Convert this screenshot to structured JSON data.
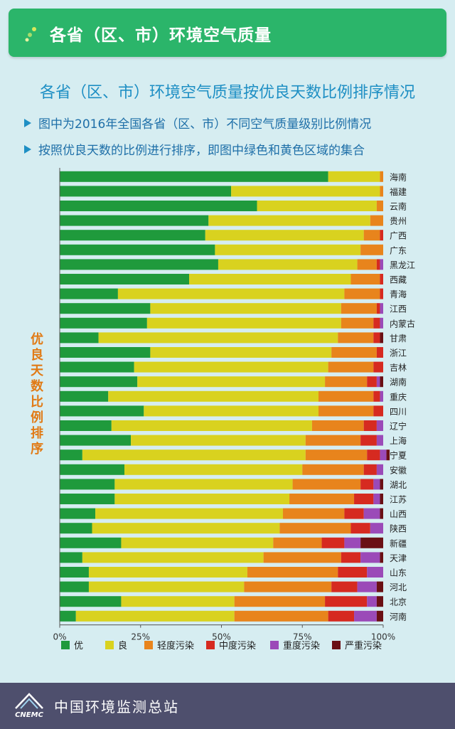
{
  "header": {
    "title": "各省（区、市）环境空气质量"
  },
  "heading": "各省（区、市）环境空气质量按优良天数比例排序情况",
  "notes": [
    "图中为2016年全国各省（区、市）不同空气质量级别比例情况",
    "按照优良天数的比例进行排序，即图中绿色和黄色区域的集合"
  ],
  "footer": {
    "organization": "中国环境监测总站",
    "logo_text": "CNEMC"
  },
  "chart_data": {
    "type": "bar",
    "orientation": "horizontal",
    "stacked": true,
    "ylabel": "优良天数比例排序",
    "xlim": [
      0,
      100
    ],
    "x_ticks": [
      "0%",
      "25%",
      "50%",
      "75%",
      "100%"
    ],
    "grid": false,
    "legend_position": "bottom",
    "categories": [
      "海南",
      "福建",
      "云南",
      "贵州",
      "广西",
      "广东",
      "黑龙江",
      "西藏",
      "青海",
      "江西",
      "内蒙古",
      "甘肃",
      "浙江",
      "吉林",
      "湖南",
      "重庆",
      "四川",
      "辽宁",
      "上海",
      "宁夏",
      "安徽",
      "湖北",
      "江苏",
      "山西",
      "陕西",
      "新疆",
      "天津",
      "山东",
      "河北",
      "北京",
      "河南"
    ],
    "series": [
      {
        "name": "优",
        "color": "#1f9a3c",
        "values": [
          83,
          53,
          61,
          46,
          45,
          48,
          49,
          40,
          18,
          28,
          27,
          12,
          28,
          23,
          24,
          15,
          26,
          16,
          22,
          7,
          20,
          17,
          17,
          11,
          10,
          19,
          7,
          9,
          9,
          19,
          5
        ]
      },
      {
        "name": "良",
        "color": "#d9d21f",
        "values": [
          16,
          46,
          37,
          50,
          49,
          45,
          43,
          50,
          70,
          59,
          60,
          74,
          56,
          60,
          58,
          65,
          54,
          62,
          54,
          69,
          55,
          55,
          54,
          58,
          58,
          47,
          56,
          49,
          48,
          35,
          49
        ]
      },
      {
        "name": "轻度污染",
        "color": "#e8841c",
        "values": [
          1,
          1,
          2,
          4,
          5,
          7,
          6,
          9,
          11,
          11,
          10,
          11,
          14,
          14,
          13,
          17,
          17,
          16,
          17,
          19,
          19,
          21,
          20,
          19,
          22,
          15,
          24,
          28,
          27,
          28,
          29
        ]
      },
      {
        "name": "中度污染",
        "color": "#d62a20",
        "values": [
          0,
          0,
          0,
          0,
          1,
          0,
          1,
          1,
          1,
          1,
          2,
          2,
          2,
          3,
          3,
          2,
          3,
          4,
          5,
          4,
          4,
          4,
          6,
          6,
          6,
          7,
          6,
          9,
          8,
          13,
          8
        ]
      },
      {
        "name": "重度污染",
        "color": "#9b4ab8",
        "values": [
          0,
          0,
          0,
          0,
          0,
          0,
          1,
          0,
          0,
          1,
          1,
          0,
          0,
          0,
          1,
          1,
          0,
          2,
          2,
          2,
          2,
          2,
          2,
          5,
          4,
          5,
          6,
          5,
          6,
          3,
          7
        ]
      },
      {
        "name": "严重污染",
        "color": "#6a0f14",
        "values": [
          0,
          0,
          0,
          0,
          0,
          0,
          0,
          0,
          0,
          0,
          0,
          1,
          0,
          0,
          1,
          0,
          0,
          0,
          0,
          1,
          0,
          1,
          1,
          1,
          0,
          7,
          1,
          0,
          2,
          2,
          2
        ]
      }
    ]
  }
}
